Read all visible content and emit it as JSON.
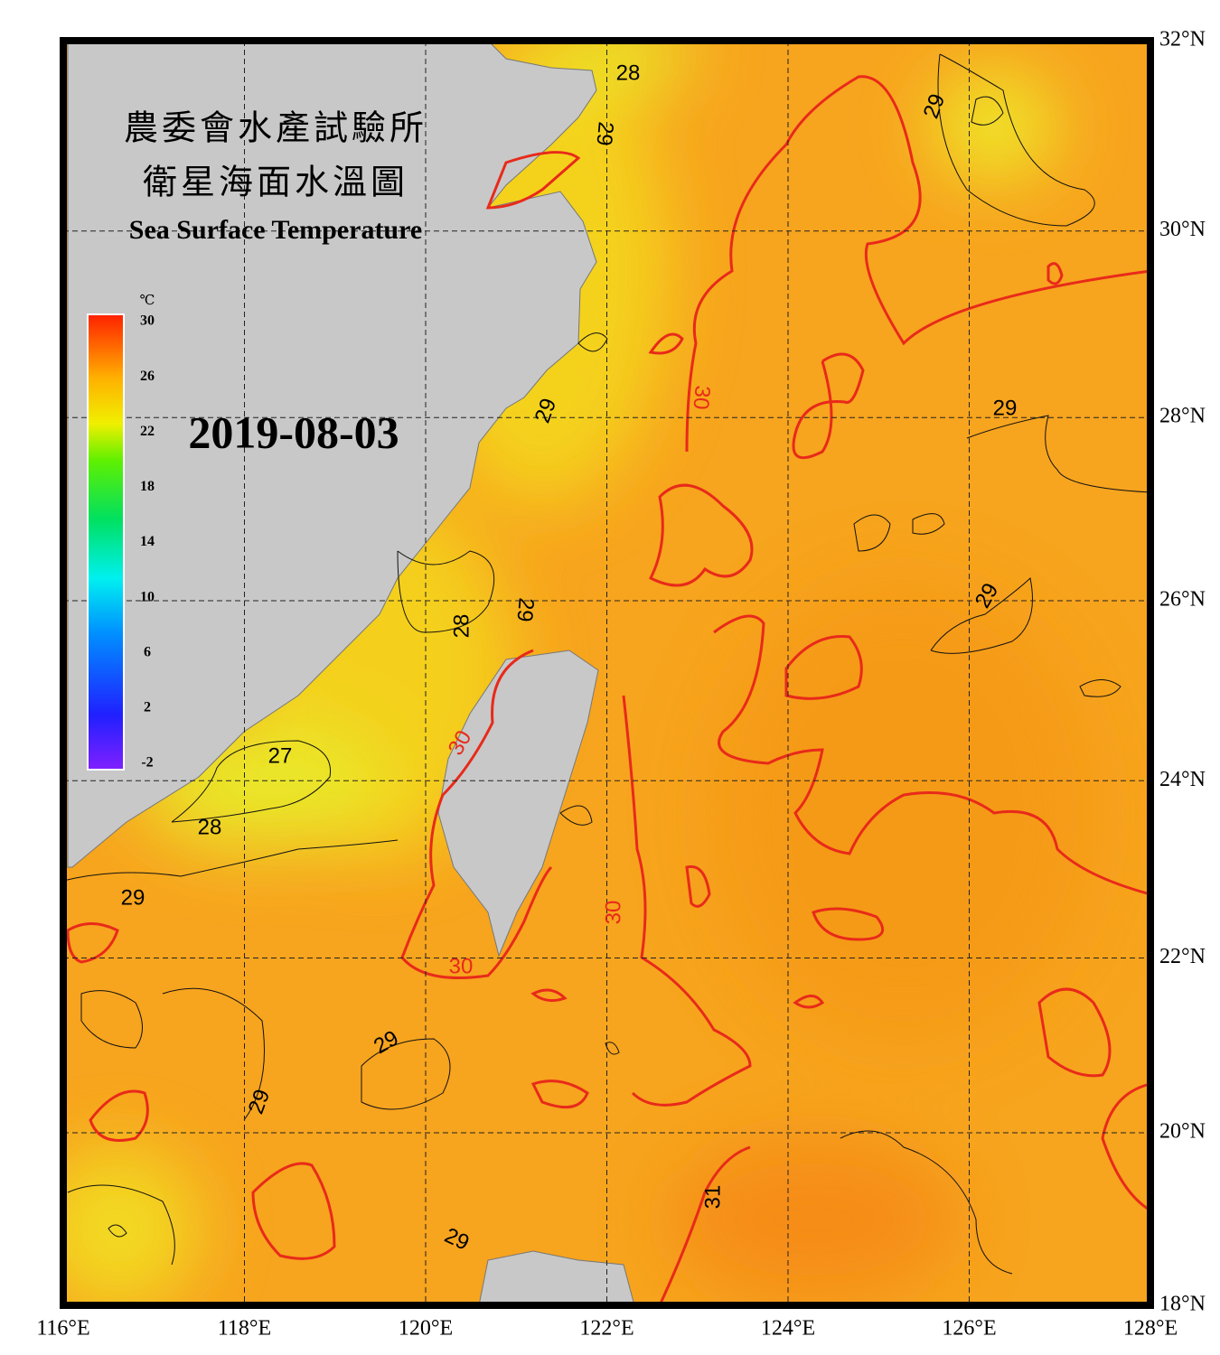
{
  "header": {
    "title_zh": "農委會水產試驗所",
    "subtitle_zh": "衛星海面水溫圖",
    "title_en": "Sea Surface Temperature",
    "date": "2019-08-03"
  },
  "colorbar": {
    "unit": "℃",
    "clim": [
      -2,
      30
    ],
    "ticks": [
      30,
      26,
      22,
      18,
      14,
      10,
      6,
      2,
      -2
    ]
  },
  "map": {
    "lonlim": [
      116,
      128
    ],
    "latlim": [
      18,
      32
    ],
    "lon_ticks": [
      {
        "value": 116,
        "label": "116°E"
      },
      {
        "value": 118,
        "label": "118°E"
      },
      {
        "value": 120,
        "label": "120°E"
      },
      {
        "value": 122,
        "label": "122°E"
      },
      {
        "value": 124,
        "label": "124°E"
      },
      {
        "value": 126,
        "label": "126°E"
      },
      {
        "value": 128,
        "label": "128°E"
      }
    ],
    "lat_ticks": [
      {
        "value": 32,
        "label": "32°N"
      },
      {
        "value": 30,
        "label": "30°N"
      },
      {
        "value": 28,
        "label": "28°N"
      },
      {
        "value": 26,
        "label": "26°N"
      },
      {
        "value": 24,
        "label": "24°N"
      },
      {
        "value": 22,
        "label": "22°N"
      },
      {
        "value": 20,
        "label": "20°N"
      },
      {
        "value": 18,
        "label": "18°N"
      }
    ],
    "contour_labels": [
      28,
      29,
      29,
      29,
      30,
      29,
      29,
      29,
      28,
      30,
      27,
      28,
      29,
      30,
      30,
      29,
      29,
      31,
      29
    ]
  }
}
